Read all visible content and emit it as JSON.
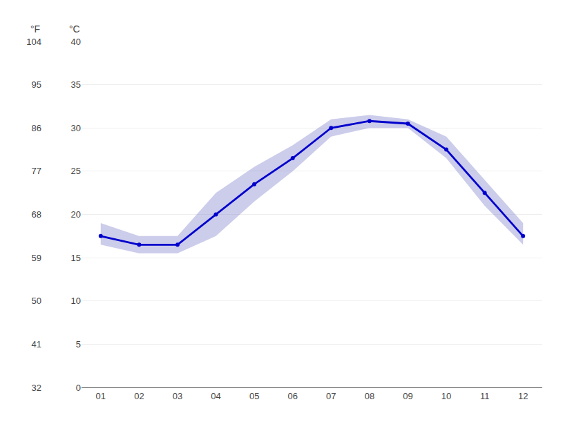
{
  "chart_data": {
    "type": "line",
    "ylabel": "°C",
    "y2label": "°F",
    "x": [
      1,
      2,
      3,
      4,
      5,
      6,
      7,
      8,
      9,
      10,
      11,
      12
    ],
    "xlim": [
      0.5,
      12.5
    ],
    "xticks": [
      {
        "value": 1,
        "label": "01"
      },
      {
        "value": 2,
        "label": "02"
      },
      {
        "value": 3,
        "label": "03"
      },
      {
        "value": 4,
        "label": "04"
      },
      {
        "value": 5,
        "label": "05"
      },
      {
        "value": 6,
        "label": "06"
      },
      {
        "value": 7,
        "label": "07"
      },
      {
        "value": 8,
        "label": "08"
      },
      {
        "value": 9,
        "label": "09"
      },
      {
        "value": 10,
        "label": "10"
      },
      {
        "value": 11,
        "label": "11"
      },
      {
        "value": 12,
        "label": "12"
      }
    ],
    "ylim": [
      0,
      40
    ],
    "yticks": [
      0,
      5,
      10,
      15,
      20,
      25,
      30,
      35,
      40
    ],
    "y2lim": [
      32,
      104
    ],
    "y2ticks": [
      32,
      41,
      50,
      59,
      68,
      77,
      86,
      95,
      104
    ],
    "grid": true,
    "series": [
      {
        "type": "band",
        "color": "#8080cc",
        "low": [
          16.5,
          15.5,
          15.5,
          17.5,
          21.5,
          25.0,
          29.0,
          30.0,
          30.0,
          26.5,
          21.0,
          16.5
        ],
        "high": [
          19.0,
          17.5,
          17.5,
          22.5,
          25.5,
          28.0,
          31.0,
          31.5,
          31.0,
          29.0,
          24.0,
          19.0
        ]
      },
      {
        "type": "line",
        "color": "#0000cc",
        "marker": "circle",
        "values": [
          17.5,
          16.5,
          16.5,
          20.0,
          23.5,
          26.5,
          30.0,
          30.8,
          30.5,
          27.5,
          22.5,
          17.5
        ]
      }
    ]
  }
}
